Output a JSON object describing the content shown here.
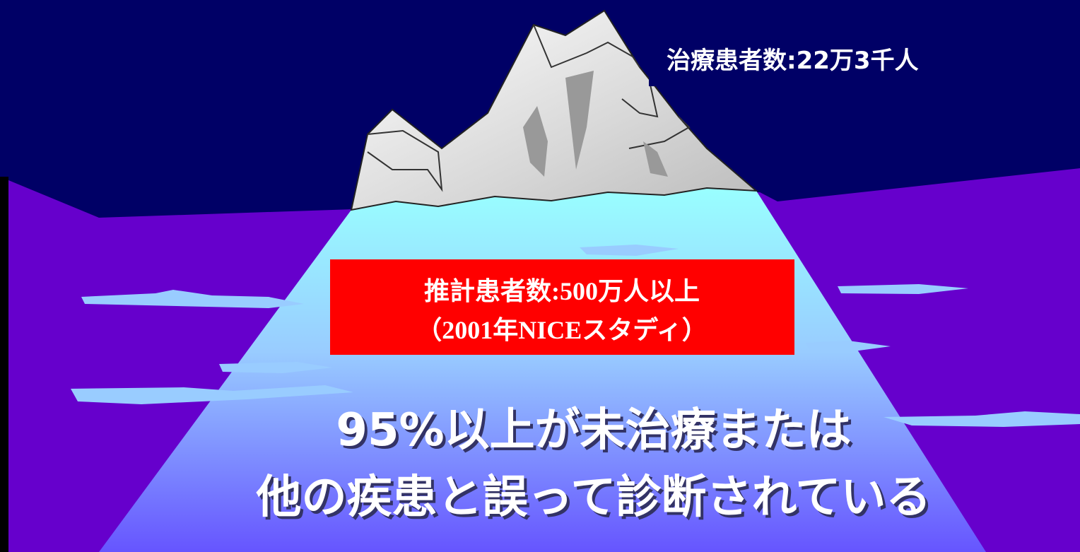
{
  "callout_top": {
    "text": "治療患者数:22万3千人"
  },
  "callout_middle": {
    "lines": [
      "推計患者数:500万人以上",
      "（2001年NICEスタディ）"
    ]
  },
  "message": {
    "lines": [
      "95%以上が未治療または",
      "他の疾患と誤って診断されている"
    ]
  }
}
